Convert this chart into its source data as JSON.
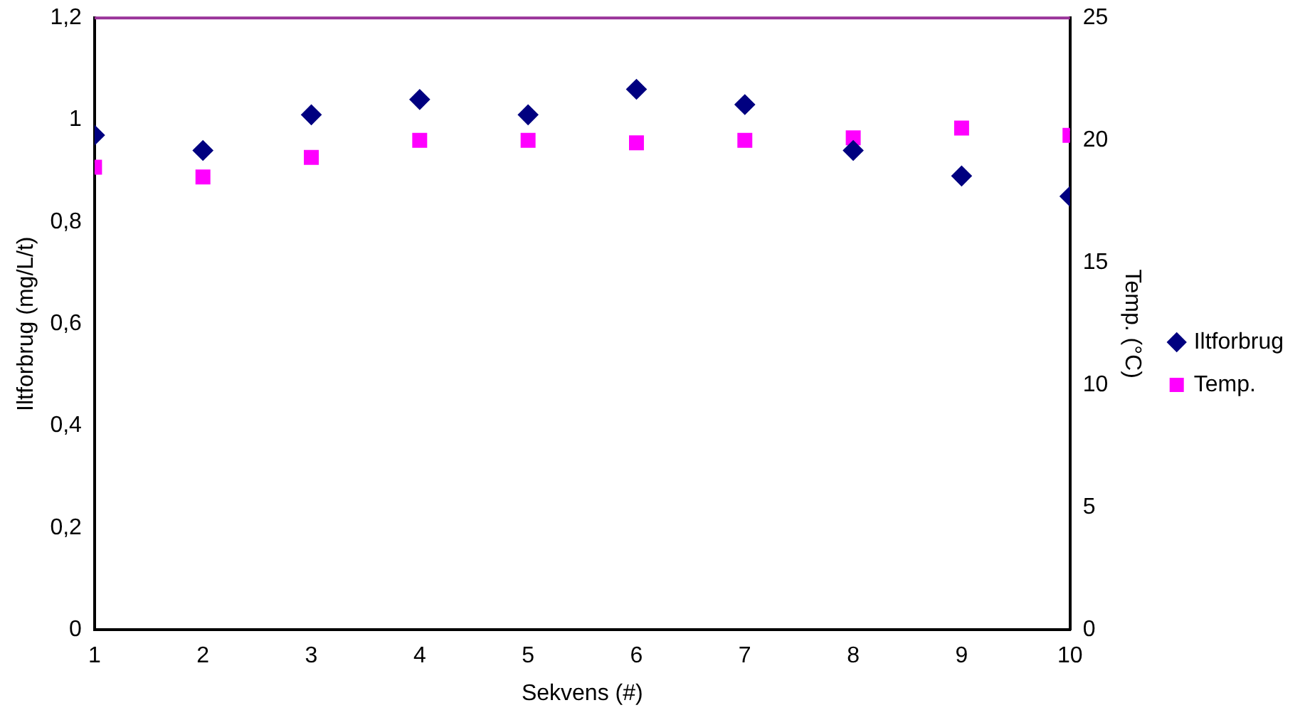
{
  "chart_data": {
    "type": "scatter",
    "xlabel": "Sekvens (#)",
    "ylabel": "Iltforbrug (mg/L/t)",
    "y2label": "Temp. (°C)",
    "x": [
      1,
      2,
      3,
      4,
      5,
      6,
      7,
      8,
      9,
      10
    ],
    "series": [
      {
        "name": "Iltforbrug",
        "color": "#000080",
        "marker": "diamond",
        "values": [
          0.97,
          0.94,
          1.01,
          1.04,
          1.01,
          1.06,
          1.03,
          0.94,
          0.89,
          0.85
        ]
      },
      {
        "name": "Temp.",
        "color": "#ff00ff",
        "marker": "square",
        "axis": "y2",
        "values": [
          18.9,
          18.5,
          19.3,
          20.0,
          20.0,
          19.9,
          20.0,
          20.1,
          20.5,
          20.2
        ]
      }
    ],
    "xlim": [
      1,
      10
    ],
    "xticks": [
      1,
      2,
      3,
      4,
      5,
      6,
      7,
      8,
      9,
      10
    ],
    "ylim": [
      0,
      1.2
    ],
    "yticks": [
      0,
      {
        "value": 0.2,
        "label": "0,2"
      },
      {
        "value": 0.4,
        "label": "0,4"
      },
      {
        "value": 0.6,
        "label": "0,6"
      },
      {
        "value": 0.8,
        "label": "0,8"
      },
      1,
      {
        "value": 1.2,
        "label": "1,2"
      }
    ],
    "y2lim": [
      0,
      25
    ],
    "y2ticks": [
      0,
      5,
      10,
      15,
      20,
      25
    ],
    "grid": false,
    "legend": "right"
  }
}
